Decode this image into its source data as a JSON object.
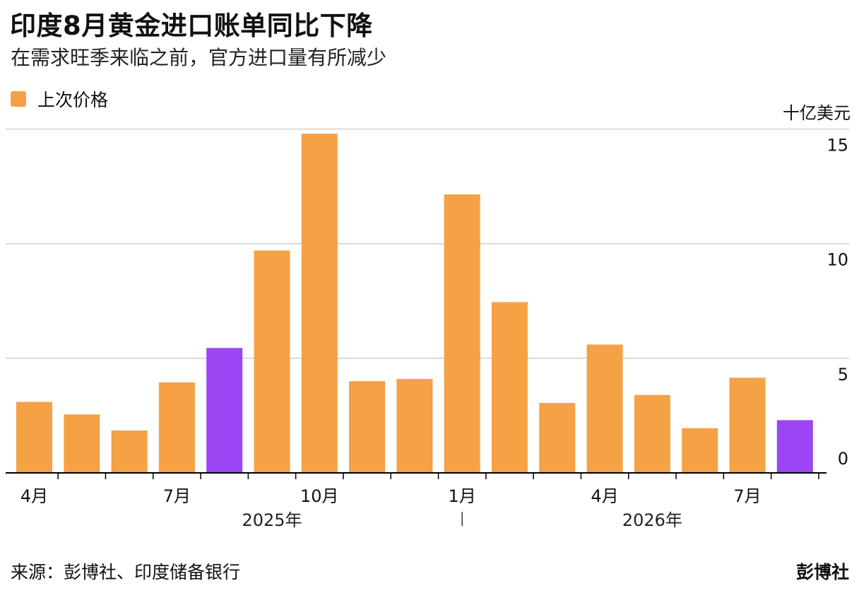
{
  "title": "印度8月黄金进口账单同比下降",
  "subtitle": "在需求旺季来临之前，官方进口量有所减少",
  "legend": {
    "label": "上次价格",
    "color": "#F5A145"
  },
  "colors": {
    "bar": "#F5A145",
    "highlight": "#9B45F5",
    "grid": "#D0D0D0",
    "axis": "#000000"
  },
  "chart_data": {
    "type": "bar",
    "unit_label": "十亿美元",
    "categories": [
      "2025-04",
      "2025-05",
      "2025-06",
      "2025-07",
      "2025-08",
      "2025-09",
      "2025-10",
      "2025-11",
      "2025-12",
      "2026-01",
      "2026-02",
      "2026-03",
      "2026-04",
      "2026-05",
      "2026-06",
      "2026-07",
      "2026-08"
    ],
    "values": [
      3.1,
      2.55,
      1.85,
      3.95,
      5.45,
      9.7,
      14.8,
      4.0,
      4.1,
      12.15,
      7.45,
      3.05,
      5.6,
      3.4,
      1.95,
      4.15,
      2.3
    ],
    "highlighted": [
      "2025-08",
      "2026-08"
    ],
    "ylim": [
      0,
      15
    ],
    "y_ticks": [
      0,
      5,
      10,
      15
    ],
    "y_axis_position": "right",
    "x_tick_labels": [
      "4月",
      "",
      "",
      "7月",
      "",
      "",
      "10月",
      "",
      "",
      "1月",
      "",
      "",
      "4月",
      "",
      "",
      "7月",
      ""
    ],
    "year_labels": [
      {
        "label": "2025年",
        "at": "2025-09"
      },
      {
        "label": "2026年",
        "at": "2026-05"
      }
    ],
    "grid": true
  },
  "footer": {
    "source": "来源：彭博社、印度储备银行",
    "brand": "彭博社"
  }
}
